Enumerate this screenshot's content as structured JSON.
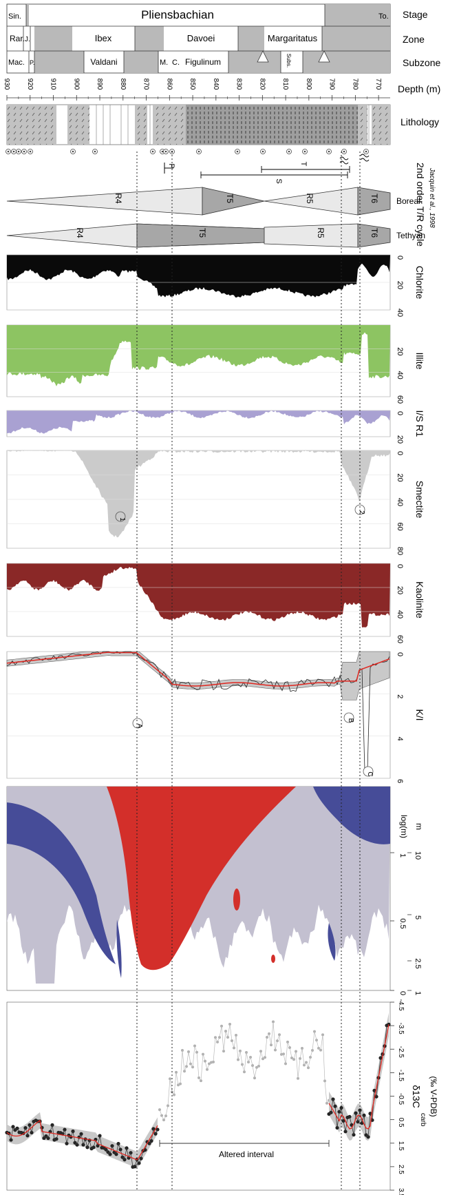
{
  "header": {
    "stage": "Pliensbachian",
    "stage_left": "Sin.",
    "stage_right": "To.",
    "zones": [
      "Rar.",
      "J.",
      "Ibex",
      "Davoei",
      "Margaritatus"
    ],
    "subzones": [
      "Mac.",
      "P.",
      "Valdani",
      "M.",
      "C.",
      "Figulinum",
      "Subs."
    ],
    "right_labels": [
      "Stage",
      "Zone",
      "Subzone",
      "Depth (m)",
      "Lithology"
    ]
  },
  "depth_ticks": [
    930,
    920,
    910,
    900,
    890,
    880,
    870,
    860,
    850,
    840,
    830,
    820,
    810,
    800,
    790,
    780,
    770
  ],
  "sequence": {
    "markers": [
      "P",
      "T",
      "S"
    ],
    "title": "2nd order T/R cycle",
    "source": "Jacquin et al., 1998",
    "boreal_label": "Boreal",
    "tethyan_label": "Tethyan",
    "boreal_cycles": [
      "R4",
      "T5",
      "R5",
      "T6"
    ],
    "tethyan_cycles": [
      "R4",
      "T5",
      "R5",
      "T6"
    ]
  },
  "clay_panels": [
    {
      "label": "Chlorite",
      "ticks": [
        "0",
        "20",
        "40"
      ]
    },
    {
      "label": "Illite",
      "ticks": [
        "20",
        "40",
        "60"
      ]
    },
    {
      "label": "I/S R1",
      "ticks": [
        "0",
        "20"
      ]
    },
    {
      "label": "Smectite",
      "ticks": [
        "0",
        "20",
        "40",
        "60",
        "80"
      ]
    },
    {
      "label": "Kaolinite",
      "ticks": [
        "0",
        "20",
        "40",
        "60"
      ]
    }
  ],
  "kao_illite": {
    "label": "K/I",
    "ticks": [
      "0",
      "2",
      "4",
      "6"
    ],
    "markers": [
      "A",
      "B",
      "C"
    ]
  },
  "smectite_markers": [
    "1",
    "2"
  ],
  "wavelet": {
    "axis_label": "log(m)",
    "unit_label": "m",
    "log_ticks": [
      "0",
      "0.5",
      "1"
    ],
    "m_ticks": [
      "1",
      "2.5",
      "5",
      "10"
    ]
  },
  "isotope": {
    "label_main": "δ13C",
    "label_sub": "carb",
    "label_unit": "(‰ V-PDB)",
    "ticks": [
      "-4.5",
      "-3.5",
      "-2.5",
      "-1.5",
      "-0.5",
      "0.5",
      "1.5",
      "2.5",
      "3.5"
    ],
    "altered": "Altered interval"
  },
  "colors": {
    "chlorite": "#0a0a0a",
    "illite": "#8dc462",
    "is_r1": "#a9a1d2",
    "smectite": "#cbcbcb",
    "kaolinite": "#8a2827",
    "wavelet_base": "#c3c0d0",
    "wavelet_red": "#d32f2a",
    "wavelet_blue": "#464c98"
  }
}
